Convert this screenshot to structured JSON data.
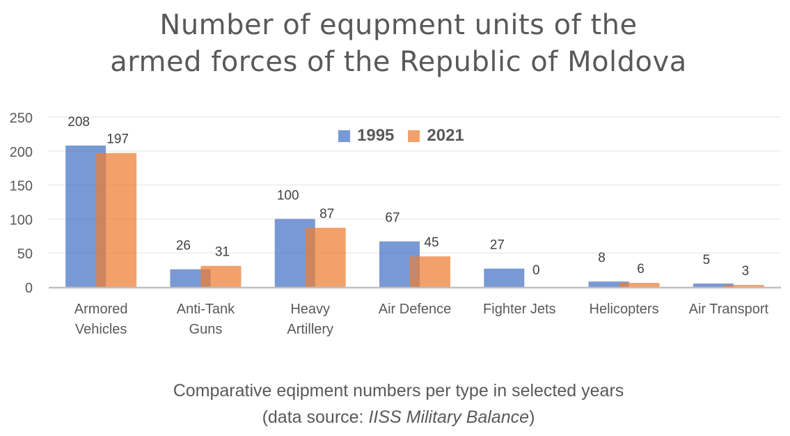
{
  "chart_data": {
    "type": "bar",
    "title": [
      "Number of equpment units of the",
      "armed forces of the Republic of Moldova"
    ],
    "subtitle": "Comparative eqipment numbers per type in selected years",
    "source_prefix": "(data source: ",
    "source_name": "IISS Military Balance",
    "source_suffix": ")",
    "xlabel": "",
    "ylabel": "",
    "ylim": [
      0,
      250
    ],
    "yticks": [
      0,
      50,
      100,
      150,
      200,
      250
    ],
    "grid": true,
    "legend_position": "top-center",
    "categories": [
      [
        "Armored",
        "Vehicles"
      ],
      [
        "Anti-Tank",
        "Guns"
      ],
      [
        "Heavy",
        "Artillery"
      ],
      [
        "Air Defence"
      ],
      [
        "Fighter Jets"
      ],
      [
        "Helicopters"
      ],
      [
        "Air Transport"
      ]
    ],
    "series": [
      {
        "name": "1995",
        "color": "#4472C4",
        "values": [
          208,
          26,
          100,
          67,
          27,
          8,
          5
        ]
      },
      {
        "name": "2021",
        "color": "#ED7D31",
        "values": [
          197,
          31,
          87,
          45,
          0,
          6,
          3
        ]
      }
    ]
  }
}
